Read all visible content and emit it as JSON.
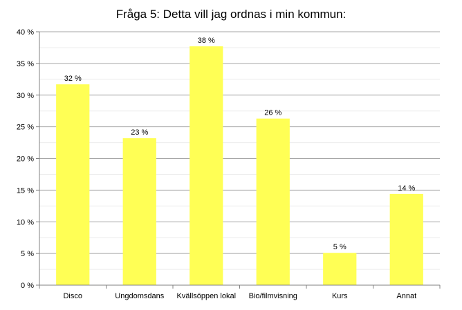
{
  "title": "Fråga 5: Detta vill jag ordnas i min kommun:",
  "colors": {
    "bar": "#ffff55",
    "major_grid": "#a6a6a6",
    "minor_grid": "#ececec",
    "axis": "#808080"
  },
  "chart_data": {
    "type": "bar",
    "title": "Fråga 5: Detta vill jag ordnas i min kommun:",
    "xlabel": "",
    "ylabel": "",
    "ylim": [
      0,
      40
    ],
    "unit": "%",
    "grid": true,
    "legend": "none",
    "yticks": [
      "0 %",
      "5 %",
      "10 %",
      "15 %",
      "20 %",
      "25 %",
      "30 %",
      "35 %",
      "40 %"
    ],
    "categories": [
      "Disco",
      "Ungdomsdans",
      "Kvällsöppen lokal",
      "Bio/filmvisning",
      "Kurs",
      "Annat"
    ],
    "values": [
      31.7,
      23.2,
      37.7,
      26.3,
      5.1,
      14.4
    ],
    "value_labels": [
      "32 %",
      "23 %",
      "38 %",
      "26 %",
      "5 %",
      "14 %"
    ]
  }
}
